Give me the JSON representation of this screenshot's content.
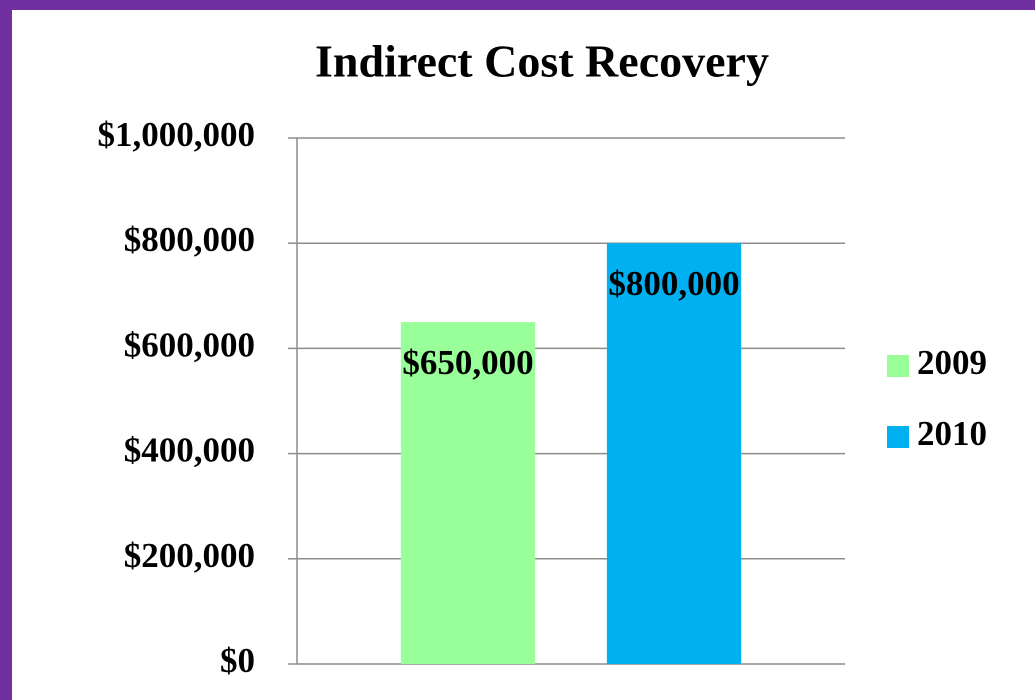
{
  "chart_data": {
    "type": "bar",
    "title": "Indirect Cost Recovery",
    "categories": [
      null
    ],
    "series": [
      {
        "name": "2009",
        "color": "#99ff99",
        "values": [
          650000
        ],
        "value_labels": [
          "$650,000"
        ]
      },
      {
        "name": "2010",
        "color": "#00b0f0",
        "values": [
          800000
        ],
        "value_labels": [
          "$800,000"
        ]
      }
    ],
    "ylim": [
      0,
      1000000
    ],
    "yticks": [
      {
        "value": 0,
        "label": "$0"
      },
      {
        "value": 200000,
        "label": "$200,000"
      },
      {
        "value": 400000,
        "label": "$400,000"
      },
      {
        "value": 600000,
        "label": "$600,000"
      },
      {
        "value": 800000,
        "label": "$800,000"
      },
      {
        "value": 1000000,
        "label": "$1,000,000"
      }
    ],
    "grid": true,
    "legend": "right"
  }
}
